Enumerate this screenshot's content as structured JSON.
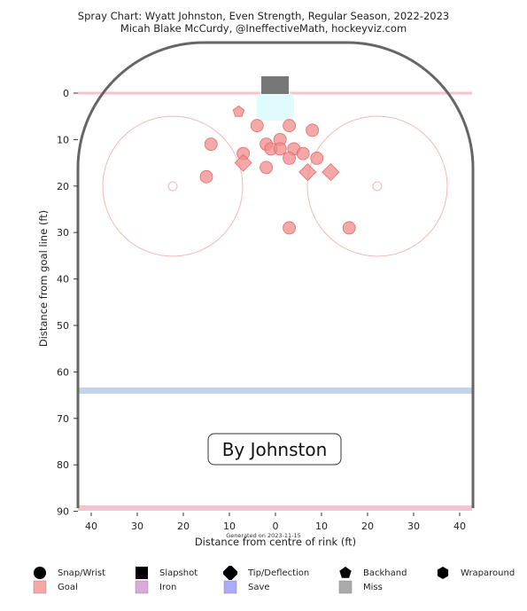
{
  "title": "Spray Chart: Wyatt Johnston, Even Strength, Regular Season, 2022-2023",
  "subtitle": "Micah Blake McCurdy, @IneffectiveMath, hockeyviz.com",
  "watermark_label": "By Johnston",
  "generated_note": "Generated on 2023-11-15",
  "colors": {
    "boards": "#666666",
    "goal_line": "#f2c4cf",
    "blue_line": "#c4d3ea",
    "crease": "#e0fbfc",
    "net": "#777777",
    "circle": "#f5b8b3",
    "goal_marker": "#f28b8b",
    "goal_marker_edge": "#e26a6a"
  },
  "chart_data": {
    "type": "scatter",
    "xlabel": "Distance from centre of rink (ft)",
    "ylabel": "Distance from goal line (ft)",
    "x_ticks": [
      "40",
      "30",
      "20",
      "10",
      "0",
      "10",
      "20",
      "30",
      "40"
    ],
    "y_ticks": [
      "0",
      "10",
      "20",
      "30",
      "40",
      "50",
      "60",
      "70",
      "80",
      "90"
    ],
    "xlim": [
      -42.5,
      42.5
    ],
    "ylim": [
      0,
      89
    ],
    "grid": false,
    "series": [
      {
        "name": "Goal",
        "points": [
          {
            "x": -8,
            "y": 4,
            "shot": "Backhand"
          },
          {
            "x": -14,
            "y": 11,
            "shot": "Snap/Wrist"
          },
          {
            "x": -4,
            "y": 7,
            "shot": "Snap/Wrist"
          },
          {
            "x": 3,
            "y": 7,
            "shot": "Snap/Wrist"
          },
          {
            "x": 8,
            "y": 8,
            "shot": "Snap/Wrist"
          },
          {
            "x": 1,
            "y": 10,
            "shot": "Snap/Wrist"
          },
          {
            "x": -2,
            "y": 11,
            "shot": "Snap/Wrist"
          },
          {
            "x": -1,
            "y": 12,
            "shot": "Snap/Wrist"
          },
          {
            "x": 1,
            "y": 12,
            "shot": "Snap/Wrist"
          },
          {
            "x": 4,
            "y": 12,
            "shot": "Snap/Wrist"
          },
          {
            "x": 6,
            "y": 13,
            "shot": "Snap/Wrist"
          },
          {
            "x": -7,
            "y": 13,
            "shot": "Snap/Wrist"
          },
          {
            "x": 3,
            "y": 14,
            "shot": "Snap/Wrist"
          },
          {
            "x": 9,
            "y": 14,
            "shot": "Snap/Wrist"
          },
          {
            "x": -7,
            "y": 15,
            "shot": "Tip/Deflection"
          },
          {
            "x": -2,
            "y": 16,
            "shot": "Snap/Wrist"
          },
          {
            "x": 7,
            "y": 17,
            "shot": "Tip/Deflection"
          },
          {
            "x": 12,
            "y": 17,
            "shot": "Tip/Deflection"
          },
          {
            "x": -15,
            "y": 18,
            "shot": "Snap/Wrist"
          },
          {
            "x": 3,
            "y": 29,
            "shot": "Snap/Wrist"
          },
          {
            "x": 16,
            "y": 29,
            "shot": "Snap/Wrist"
          }
        ]
      }
    ],
    "legend": {
      "placement": "bottom",
      "shot_types": [
        {
          "label": "Snap/Wrist",
          "icon": "circle"
        },
        {
          "label": "Slapshot",
          "icon": "square"
        },
        {
          "label": "Tip/Deflection",
          "icon": "diamond"
        },
        {
          "label": "Backhand",
          "icon": "pentagon"
        },
        {
          "label": "Wraparound",
          "icon": "hexagon"
        }
      ],
      "outcomes": [
        {
          "label": "Goal",
          "color": "#f7a7a7"
        },
        {
          "label": "Iron",
          "color": "#d9a9d9"
        },
        {
          "label": "Save",
          "color": "#aaaaff"
        },
        {
          "label": "Miss",
          "color": "#aaaaaa"
        }
      ]
    }
  }
}
